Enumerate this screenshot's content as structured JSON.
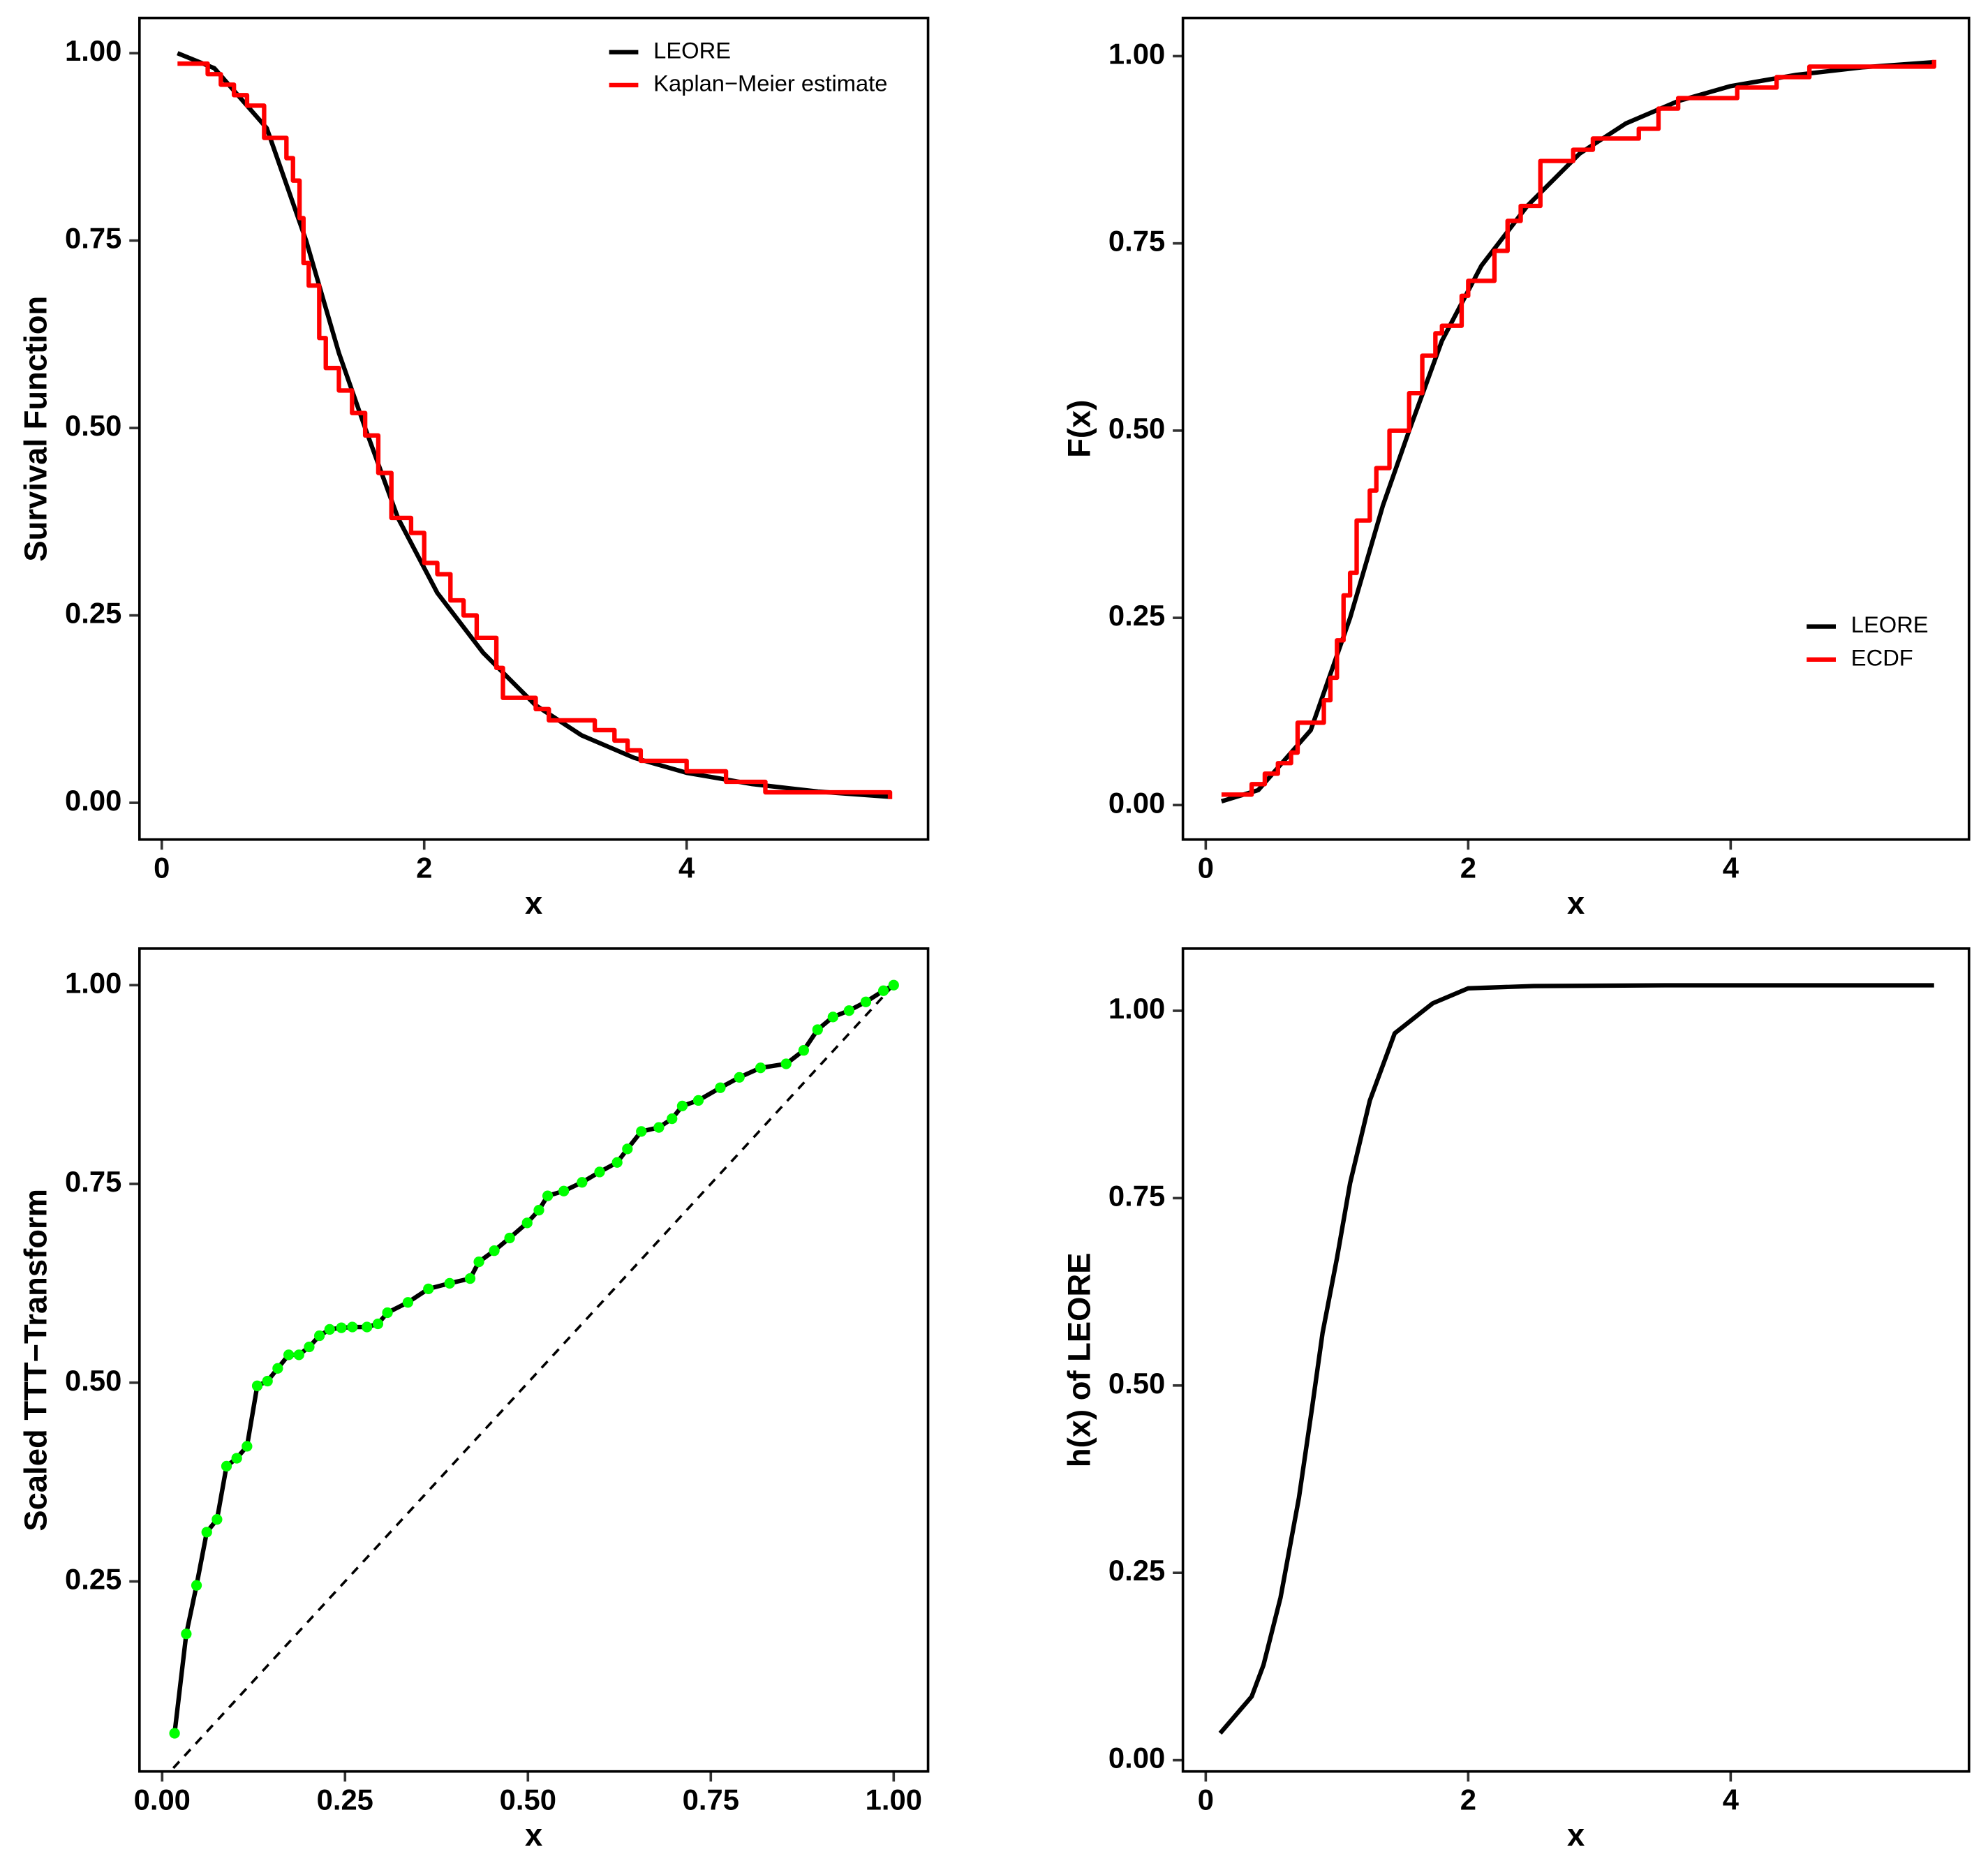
{
  "chart_data": [
    {
      "type": "line",
      "x_label": "x",
      "y_label": "Survival Function",
      "legend": "top-right",
      "xlim": [
        -0.17,
        5.84
      ],
      "ylim": [
        -0.049,
        1.047
      ],
      "xticks": [
        0,
        2,
        4
      ],
      "yticks": [
        {
          "value": 0,
          "label": "0.00"
        },
        {
          "value": 0.25,
          "label": "0.25"
        },
        {
          "value": 0.5,
          "label": "0.50"
        },
        {
          "value": 0.75,
          "label": "0.75"
        },
        {
          "value": 1,
          "label": "1.00"
        }
      ],
      "series": [
        {
          "name": "LEORE",
          "color": "#000000",
          "x": [
            0.12,
            0.4,
            0.8,
            1.1,
            1.35,
            1.55,
            1.8,
            2.1,
            2.45,
            2.85,
            3.2,
            3.6,
            4.0,
            4.5,
            5.0,
            5.55
          ],
          "values": [
            1.0,
            0.98,
            0.9,
            0.75,
            0.6,
            0.5,
            0.38,
            0.28,
            0.2,
            0.13,
            0.09,
            0.06,
            0.04,
            0.025,
            0.015,
            0.008
          ]
        },
        {
          "name": "Kaplan−Meier estimate",
          "color": "#ff0000",
          "step": true,
          "x": [
            0.12,
            0.35,
            0.45,
            0.55,
            0.65,
            0.78,
            0.95,
            1.0,
            1.05,
            1.08,
            1.12,
            1.2,
            1.25,
            1.35,
            1.45,
            1.55,
            1.65,
            1.75,
            1.9,
            2.0,
            2.1,
            2.2,
            2.3,
            2.4,
            2.55,
            2.6,
            2.85,
            2.95,
            3.3,
            3.45,
            3.55,
            3.65,
            4.0,
            4.3,
            4.6,
            5.55
          ],
          "values": [
            0.986,
            0.972,
            0.958,
            0.944,
            0.93,
            0.887,
            0.86,
            0.83,
            0.78,
            0.72,
            0.69,
            0.62,
            0.58,
            0.55,
            0.52,
            0.49,
            0.44,
            0.38,
            0.36,
            0.32,
            0.305,
            0.27,
            0.25,
            0.22,
            0.18,
            0.14,
            0.125,
            0.11,
            0.097,
            0.083,
            0.07,
            0.056,
            0.042,
            0.028,
            0.014,
            0.005
          ]
        }
      ]
    },
    {
      "type": "line",
      "x_label": "x",
      "y_label": "F(x)",
      "legend": "bottom-right",
      "xlim": [
        -0.174,
        5.816
      ],
      "ylim": [
        -0.046,
        1.051
      ],
      "xticks": [
        0,
        2,
        4
      ],
      "yticks": [
        {
          "value": 0,
          "label": "0.00"
        },
        {
          "value": 0.25,
          "label": "0.25"
        },
        {
          "value": 0.5,
          "label": "0.50"
        },
        {
          "value": 0.75,
          "label": "0.75"
        },
        {
          "value": 1,
          "label": "1.00"
        }
      ],
      "series": [
        {
          "name": "LEORE",
          "color": "#000000",
          "x": [
            0.12,
            0.4,
            0.8,
            1.1,
            1.35,
            1.55,
            1.8,
            2.1,
            2.45,
            2.85,
            3.2,
            3.6,
            4.0,
            4.5,
            5.0,
            5.55
          ],
          "values": [
            0.005,
            0.02,
            0.1,
            0.25,
            0.4,
            0.5,
            0.62,
            0.72,
            0.8,
            0.87,
            0.91,
            0.94,
            0.96,
            0.975,
            0.985,
            0.992
          ]
        },
        {
          "name": "ECDF",
          "color": "#ff0000",
          "step": true,
          "x": [
            0.12,
            0.35,
            0.45,
            0.55,
            0.65,
            0.7,
            0.9,
            0.95,
            1.0,
            1.05,
            1.1,
            1.15,
            1.25,
            1.3,
            1.4,
            1.55,
            1.65,
            1.75,
            1.8,
            1.95,
            2.0,
            2.2,
            2.3,
            2.4,
            2.55,
            2.8,
            2.95,
            3.3,
            3.45,
            3.6,
            4.05,
            4.35,
            4.6,
            5.55
          ],
          "values": [
            0.014,
            0.028,
            0.042,
            0.056,
            0.07,
            0.11,
            0.14,
            0.17,
            0.22,
            0.28,
            0.31,
            0.38,
            0.42,
            0.45,
            0.5,
            0.55,
            0.6,
            0.63,
            0.64,
            0.68,
            0.7,
            0.74,
            0.78,
            0.8,
            0.86,
            0.875,
            0.89,
            0.903,
            0.93,
            0.944,
            0.958,
            0.972,
            0.986,
            0.995
          ]
        }
      ]
    },
    {
      "type": "line",
      "x_label": "x",
      "y_label": "Scaled TTT−Transform",
      "xlim": [
        -0.031,
        1.047
      ],
      "ylim": [
        0.011,
        1.046
      ],
      "xticks": [
        {
          "value": 0,
          "label": "0.00"
        },
        {
          "value": 0.25,
          "label": "0.25"
        },
        {
          "value": 0.5,
          "label": "0.50"
        },
        {
          "value": 0.75,
          "label": "0.75"
        },
        {
          "value": 1,
          "label": "1.00"
        }
      ],
      "yticks": [
        {
          "value": 0.25,
          "label": "0.25"
        },
        {
          "value": 0.5,
          "label": "0.50"
        },
        {
          "value": 0.75,
          "label": "0.75"
        },
        {
          "value": 1,
          "label": "1.00"
        }
      ],
      "series": [
        {
          "color": "#000000",
          "dashed": true,
          "x": [
            0,
            1
          ],
          "values": [
            0,
            1
          ]
        },
        {
          "color": "#000000",
          "markers": true,
          "marker_color": "#00ff00",
          "x": [
            0.017,
            0.033,
            0.047,
            0.061,
            0.075,
            0.088,
            0.102,
            0.116,
            0.13,
            0.144,
            0.158,
            0.173,
            0.187,
            0.201,
            0.215,
            0.229,
            0.245,
            0.26,
            0.28,
            0.295,
            0.308,
            0.336,
            0.364,
            0.393,
            0.421,
            0.433,
            0.454,
            0.475,
            0.499,
            0.515,
            0.527,
            0.549,
            0.574,
            0.598,
            0.622,
            0.636,
            0.655,
            0.679,
            0.697,
            0.711,
            0.733,
            0.763,
            0.789,
            0.818,
            0.853,
            0.877,
            0.896,
            0.917,
            0.939,
            0.962,
            0.986,
            1.0
          ],
          "values": [
            0.059,
            0.184,
            0.245,
            0.312,
            0.328,
            0.395,
            0.405,
            0.42,
            0.496,
            0.502,
            0.518,
            0.535,
            0.535,
            0.545,
            0.559,
            0.567,
            0.569,
            0.57,
            0.57,
            0.574,
            0.588,
            0.601,
            0.618,
            0.625,
            0.631,
            0.652,
            0.666,
            0.682,
            0.701,
            0.717,
            0.735,
            0.741,
            0.752,
            0.765,
            0.777,
            0.794,
            0.816,
            0.821,
            0.832,
            0.848,
            0.855,
            0.871,
            0.884,
            0.896,
            0.901,
            0.918,
            0.944,
            0.96,
            0.968,
            0.979,
            0.993,
            1.0
          ]
        }
      ]
    },
    {
      "type": "line",
      "x_label": "x",
      "y_label": "h(x) of LEORE",
      "xlim": [
        -0.174,
        5.816
      ],
      "ylim": [
        -0.015,
        1.083
      ],
      "xticks": [
        0,
        2,
        4
      ],
      "yticks": [
        {
          "value": 0,
          "label": "0.00"
        },
        {
          "value": 0.25,
          "label": "0.25"
        },
        {
          "value": 0.5,
          "label": "0.50"
        },
        {
          "value": 0.75,
          "label": "0.75"
        },
        {
          "value": 1,
          "label": "1.00"
        }
      ],
      "series": [
        {
          "color": "#000000",
          "x": [
            0.11,
            0.35,
            0.44,
            0.57,
            0.71,
            0.81,
            0.89,
            1.0,
            1.1,
            1.25,
            1.44,
            1.73,
            2.0,
            2.5,
            3.5,
            5.55
          ],
          "values": [
            0.036,
            0.085,
            0.127,
            0.217,
            0.35,
            0.47,
            0.57,
            0.67,
            0.77,
            0.88,
            0.97,
            1.01,
            1.03,
            1.033,
            1.034,
            1.034
          ]
        }
      ]
    }
  ]
}
